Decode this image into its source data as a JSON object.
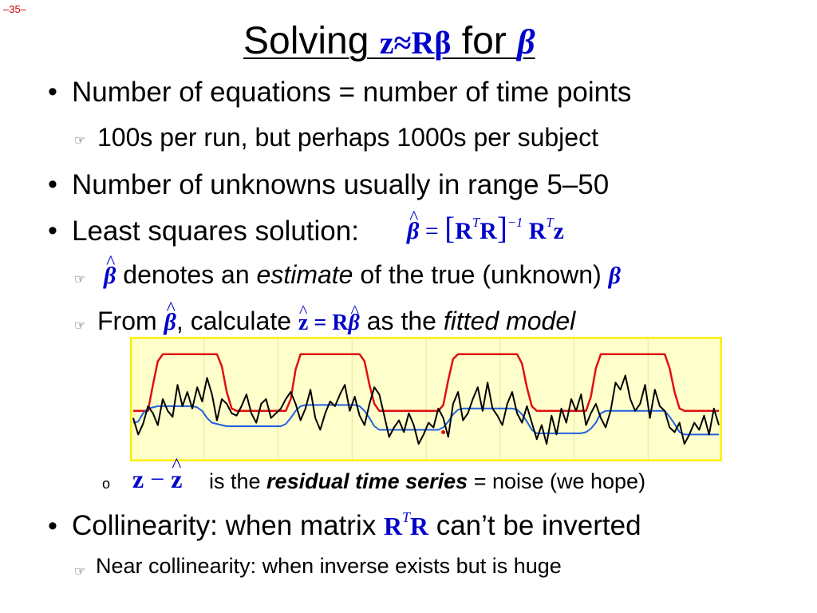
{
  "page_number": "–35–",
  "title": {
    "prefix": "Solving ",
    "model": "z≈Rβ",
    "for": " for ",
    "beta": "β"
  },
  "bullets": [
    {
      "text": "Number of equations = number of time points"
    },
    {
      "text": "100s per run, but perhaps 1000s per subject"
    },
    {
      "text": "Number of unknowns usually in range 5–50"
    },
    {
      "text": "Least squares solution:",
      "formula": {
        "lhs": "β",
        "eq": "=",
        "lb": "[",
        "R1": "R",
        "T1": "T",
        "R2": "R",
        "rb": "]",
        "inv": "−1",
        "R3": "R",
        "T2": "T",
        "z": "z"
      }
    },
    {
      "beta": "β",
      "text_a": " denotes an ",
      "em": "estimate",
      "text_b": " of the true (unknown) ",
      "beta_true": "β"
    },
    {
      "text_a": "From ",
      "beta": "β",
      "text_b": ", calculate ",
      "zhat": "z",
      "eq": " = R",
      "beta2": "β",
      "text_c": " as the ",
      "em": "fitted model"
    },
    {
      "bullet": "o",
      "z": "z",
      "minus": " − ",
      "zhat": "z",
      "text_a": " is the ",
      "strong": "residual time series",
      "text_b": " = noise (we hope)"
    },
    {
      "text_a": "Collinearity: when matrix ",
      "R1": "R",
      "T": "T",
      "R2": "R",
      "text_b": " can’t be inverted"
    },
    {
      "text": "Near collinearity: when inverse exists but is huge"
    }
  ],
  "symbols": {
    "bullet": "•",
    "hand": "☞"
  },
  "chart_data": {
    "type": "line",
    "title": "",
    "x": [
      0,
      1,
      2,
      3,
      4,
      5,
      6,
      7,
      8,
      9,
      10,
      11,
      12,
      13,
      14,
      15,
      16,
      17,
      18,
      19,
      20,
      21,
      22,
      23,
      24,
      25,
      26,
      27,
      28,
      29,
      30,
      31,
      32,
      33,
      34,
      35,
      36,
      37,
      38,
      39,
      40,
      41,
      42,
      43,
      44,
      45,
      46,
      47,
      48,
      49,
      50,
      51,
      52,
      53,
      54,
      55,
      56,
      57,
      58,
      59,
      60,
      61,
      62,
      63,
      64,
      65,
      66,
      67,
      68,
      69,
      70,
      71,
      72,
      73,
      74,
      75,
      76,
      77,
      78,
      79,
      80,
      81,
      82,
      83,
      84,
      85,
      86,
      87,
      88,
      89,
      90,
      91,
      92,
      93,
      94,
      95,
      96,
      97,
      98,
      99,
      100,
      101,
      102,
      103,
      104,
      105,
      106,
      107,
      108,
      109,
      110,
      111,
      112,
      113,
      114,
      115,
      116,
      117,
      118,
      119
    ],
    "ylim": [
      0,
      100
    ],
    "grid": true,
    "colors": {
      "background": "#ffffcc",
      "frame": "#ffee00",
      "stimulus": "#e01010",
      "fitted": "#2060e0",
      "data": "#000000",
      "marker": "#e01010"
    },
    "series": [
      {
        "values": [
          40,
          40,
          40,
          40,
          62,
          82,
          88,
          88,
          88,
          88,
          88,
          88,
          88,
          88,
          88,
          88,
          88,
          88,
          78,
          56,
          42,
          40,
          40,
          40,
          40,
          40,
          40,
          40,
          40,
          40,
          40,
          40,
          50,
          75,
          88,
          88,
          88,
          88,
          88,
          88,
          88,
          88,
          88,
          88,
          88,
          88,
          88,
          82,
          62,
          46,
          40,
          40,
          40,
          40,
          40,
          40,
          40,
          40,
          40,
          40,
          40,
          40,
          40,
          45,
          66,
          84,
          88,
          88,
          88,
          88,
          88,
          88,
          88,
          88,
          88,
          88,
          88,
          88,
          88,
          80,
          60,
          44,
          40,
          40,
          40,
          40,
          40,
          40,
          40,
          40,
          40,
          40,
          40,
          52,
          76,
          88,
          88,
          88,
          88,
          88,
          88,
          88,
          88,
          88,
          88,
          88,
          88,
          88,
          88,
          76,
          56,
          42,
          40,
          40,
          40,
          40,
          40,
          40,
          40,
          40
        ]
      },
      {
        "values": [
          30,
          31,
          38,
          42,
          43,
          44,
          44,
          44,
          44,
          44,
          44,
          44,
          44,
          43,
          40,
          34,
          30,
          29,
          28,
          27,
          27,
          27,
          27,
          27,
          27,
          27,
          27,
          27,
          27,
          27,
          27,
          29,
          34,
          40,
          44,
          45,
          45,
          45,
          45,
          45,
          45,
          45,
          45,
          45,
          45,
          45,
          44,
          40,
          34,
          27,
          24,
          24,
          24,
          24,
          24,
          24,
          24,
          24,
          24,
          24,
          24,
          24,
          24,
          26,
          31,
          37,
          41,
          42,
          42,
          42,
          42,
          42,
          42,
          42,
          42,
          42,
          42,
          42,
          41,
          37,
          31,
          24,
          21,
          21,
          21,
          21,
          21,
          21,
          21,
          21,
          21,
          21,
          22,
          25,
          30,
          38,
          40,
          40,
          40,
          40,
          40,
          40,
          40,
          40,
          40,
          40,
          40,
          40,
          40,
          35,
          29,
          22,
          20,
          20,
          20,
          20,
          20,
          20,
          20,
          20
        ]
      },
      {
        "values": [
          34,
          20,
          29,
          44,
          38,
          28,
          50,
          40,
          35,
          62,
          44,
          56,
          42,
          60,
          48,
          68,
          54,
          32,
          50,
          46,
          38,
          36,
          44,
          54,
          38,
          30,
          46,
          50,
          34,
          38,
          42,
          50,
          56,
          46,
          32,
          42,
          58,
          34,
          24,
          38,
          48,
          44,
          54,
          62,
          40,
          52,
          36,
          28,
          46,
          60,
          54,
          36,
          18,
          26,
          32,
          22,
          38,
          28,
          12,
          20,
          30,
          26,
          42,
          34,
          18,
          46,
          56,
          32,
          38,
          50,
          60,
          40,
          64,
          42,
          36,
          28,
          46,
          56,
          38,
          30,
          44,
          30,
          16,
          28,
          12,
          36,
          20,
          42,
          30,
          50,
          40,
          54,
          28,
          38,
          46,
          34,
          26,
          40,
          64,
          58,
          70,
          50,
          40,
          46,
          62,
          34,
          58,
          44,
          40,
          26,
          22,
          30,
          12,
          20,
          30,
          24,
          36,
          20,
          42,
          28
        ]
      }
    ],
    "marker": {
      "x": 63,
      "y": 22
    }
  }
}
